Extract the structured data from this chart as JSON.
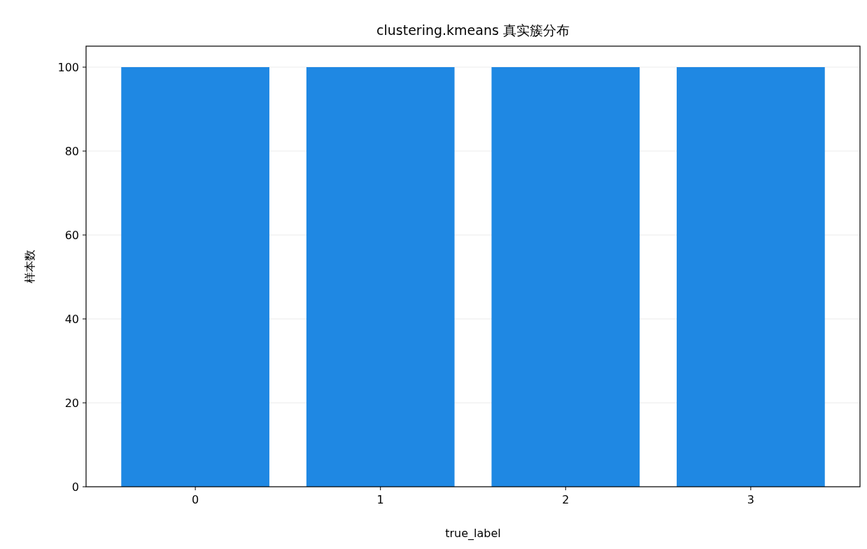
{
  "chart_data": {
    "type": "bar",
    "title": "clustering.kmeans 真实簇分布",
    "xlabel": "true_label",
    "ylabel": "样本数",
    "categories": [
      "0",
      "1",
      "2",
      "3"
    ],
    "values": [
      100,
      100,
      100,
      100
    ],
    "color": "#1f88e3",
    "ylim": [
      0,
      105
    ],
    "yticks": [
      0,
      20,
      40,
      60,
      80,
      100
    ],
    "grid": "y"
  }
}
